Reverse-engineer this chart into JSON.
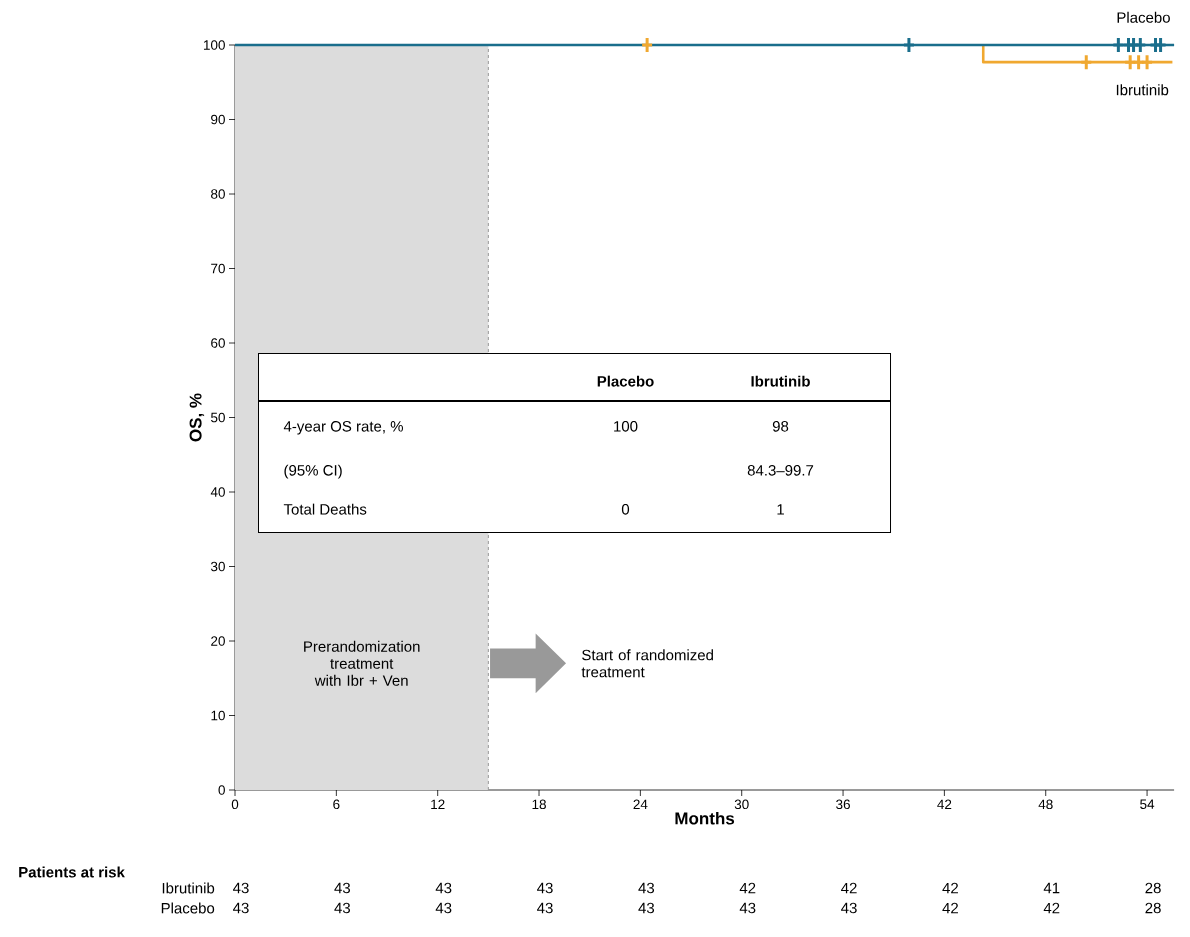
{
  "chart_data": {
    "type": "step",
    "xlabel": "Months",
    "ylabel": "OS, %",
    "xlim": [
      0,
      55.6
    ],
    "ylim": [
      0,
      100
    ],
    "xticks": [
      0,
      6,
      12,
      18,
      24,
      30,
      36,
      42,
      48,
      54
    ],
    "yticks": [
      0,
      10,
      20,
      30,
      40,
      50,
      60,
      70,
      80,
      90,
      100
    ],
    "series": [
      {
        "name": "Ibrutinib",
        "color": "#f0a830",
        "x": [
          44.3,
          44.3,
          55.5
        ],
        "values": [
          100,
          97.7,
          97.7
        ]
      },
      {
        "name": "Placebo",
        "color": "#1a6e8c",
        "x": [
          0,
          55.6
        ],
        "values": [
          100,
          100
        ]
      },
      {
        "type": "scatter",
        "marker": "cross",
        "color": "#f0a830",
        "x": [
          24.4,
          50.4,
          53.0,
          53.5,
          54.0
        ],
        "values": [
          100,
          97.7,
          97.7,
          97.7,
          97.7
        ]
      },
      {
        "type": "scatter",
        "marker": "cross",
        "color": "#1a6e8c",
        "x": [
          39.9,
          52.3,
          52.9,
          53.2,
          53.6,
          54.5,
          54.8
        ],
        "values": [
          100,
          100,
          100,
          100,
          100,
          100,
          100
        ]
      }
    ],
    "bands": [
      {
        "axis": "x",
        "from": 0,
        "to": 15,
        "label": "Prerandomization treatment with Ibr + Ven",
        "color": "#dcdcdc"
      }
    ],
    "ref_lines": [
      {
        "axis": "x",
        "value": 15,
        "line_style": "dashed",
        "color": "#999999"
      }
    ],
    "annotations": [
      "Patients at risk",
      "Ibrutinib",
      "43",
      "43",
      "43",
      "43",
      "43",
      "42",
      "42",
      "42",
      "41",
      "28",
      "Placebo",
      "43",
      "43",
      "43",
      "43",
      "43",
      "43",
      "43",
      "42",
      "42",
      "28",
      "Placebo",
      "Ibrutinib",
      "4-year OS rate, %",
      "100",
      "98",
      "(95% CI)",
      "84.3–99.7",
      "Total Deaths",
      "0",
      "1",
      "Start of randomized treatment"
    ]
  }
}
